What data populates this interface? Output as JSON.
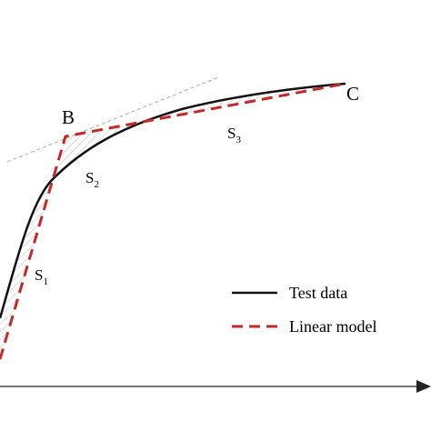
{
  "points": {
    "b": "B",
    "c": "C"
  },
  "regions": [
    {
      "letter": "S",
      "index": "1"
    },
    {
      "letter": "S",
      "index": "2"
    },
    {
      "letter": "S",
      "index": "3"
    }
  ],
  "legend": [
    "Test data",
    "Linear model"
  ]
}
